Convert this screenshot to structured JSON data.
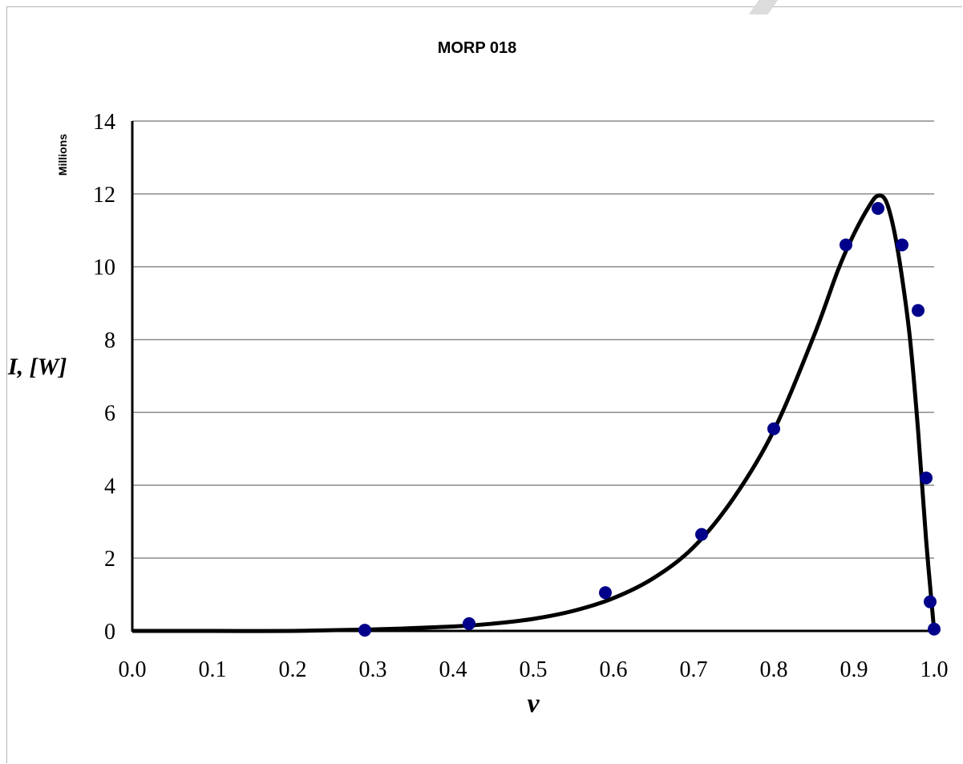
{
  "chart_data": {
    "type": "scatter",
    "title": "MORP 018",
    "xlabel": "v",
    "ylabel": "I, [W]",
    "y_unit_label": "Millions",
    "xlim": [
      0.0,
      1.0
    ],
    "ylim": [
      0,
      14
    ],
    "x_ticks": [
      "0.0",
      "0.1",
      "0.2",
      "0.3",
      "0.4",
      "0.5",
      "0.6",
      "0.7",
      "0.8",
      "0.9",
      "1.0"
    ],
    "y_ticks": [
      "0",
      "2",
      "4",
      "6",
      "8",
      "10",
      "12",
      "14"
    ],
    "grid": "horizontal",
    "legend": "none",
    "series": [
      {
        "kind": "markers",
        "color": "#00008b",
        "x": [
          0.29,
          0.42,
          0.59,
          0.71,
          0.8,
          0.89,
          0.93,
          0.96,
          0.98,
          0.99,
          0.995,
          1.0
        ],
        "y": [
          0.02,
          0.2,
          1.05,
          2.65,
          5.55,
          10.6,
          11.6,
          10.6,
          8.8,
          4.2,
          0.8,
          0.05
        ]
      },
      {
        "kind": "line",
        "color": "#000000",
        "x": [
          0.0,
          0.1,
          0.2,
          0.3,
          0.4,
          0.45,
          0.5,
          0.55,
          0.6,
          0.65,
          0.7,
          0.75,
          0.8,
          0.85,
          0.88,
          0.9,
          0.92,
          0.93,
          0.94,
          0.95,
          0.96,
          0.97,
          0.98,
          0.99,
          1.0
        ],
        "y": [
          0.0,
          0.0,
          0.0,
          0.04,
          0.12,
          0.2,
          0.33,
          0.55,
          0.9,
          1.45,
          2.3,
          3.65,
          5.5,
          8.1,
          9.9,
          10.9,
          11.7,
          11.95,
          11.8,
          11.0,
          9.7,
          8.0,
          5.5,
          2.5,
          0.0
        ]
      }
    ]
  }
}
